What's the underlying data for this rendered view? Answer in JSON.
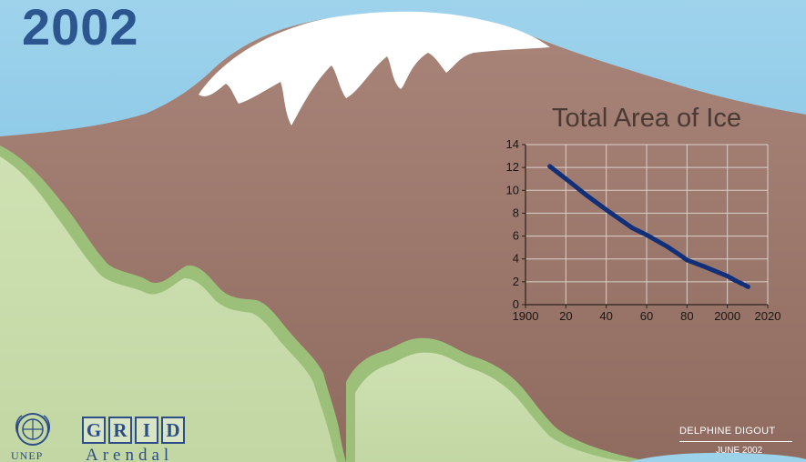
{
  "header": {
    "year": "2002"
  },
  "chart_data": {
    "type": "line",
    "title": "Total Area of Ice",
    "xlabel": "",
    "ylabel": "",
    "x_tick_labels": [
      "1900",
      "20",
      "40",
      "60",
      "80",
      "2000",
      "2020"
    ],
    "x_ticks": [
      1900,
      1920,
      1940,
      1960,
      1980,
      2000,
      2020
    ],
    "y_ticks": [
      0,
      2,
      4,
      6,
      8,
      10,
      12,
      14
    ],
    "xlim": [
      1900,
      2020
    ],
    "ylim": [
      0,
      14
    ],
    "grid": true,
    "legend": "none",
    "series": [
      {
        "x": [
          1912,
          1920,
          1930,
          1940,
          1953,
          1960,
          1970,
          1976,
          1980,
          1989,
          2000,
          2003
        ],
        "values": [
          12.1,
          11.0,
          9.6,
          8.3,
          6.7,
          6.1,
          5.1,
          4.4,
          3.9,
          3.3,
          2.5,
          2.2
        ],
        "color": "#12307a"
      },
      {
        "x": [
          2003,
          2011
        ],
        "values": [
          2.2,
          1.5
        ],
        "color": "#12307a",
        "style": "dashed"
      }
    ]
  },
  "logos": {
    "unep": "UNEP",
    "grid_letters": [
      "G",
      "R",
      "I",
      "D"
    ],
    "arendal": "Arendal"
  },
  "credit": {
    "author": "DELPHINE DIGOUT",
    "date": "JUNE 2002"
  },
  "colors": {
    "sky": "#7ec3e3",
    "mountain": "#9b786c",
    "snow": "#ffffff",
    "vegetation": "#c7dba8",
    "vegetation_edge": "#9cc07a",
    "line": "#12307a",
    "title": "#2c5690"
  }
}
